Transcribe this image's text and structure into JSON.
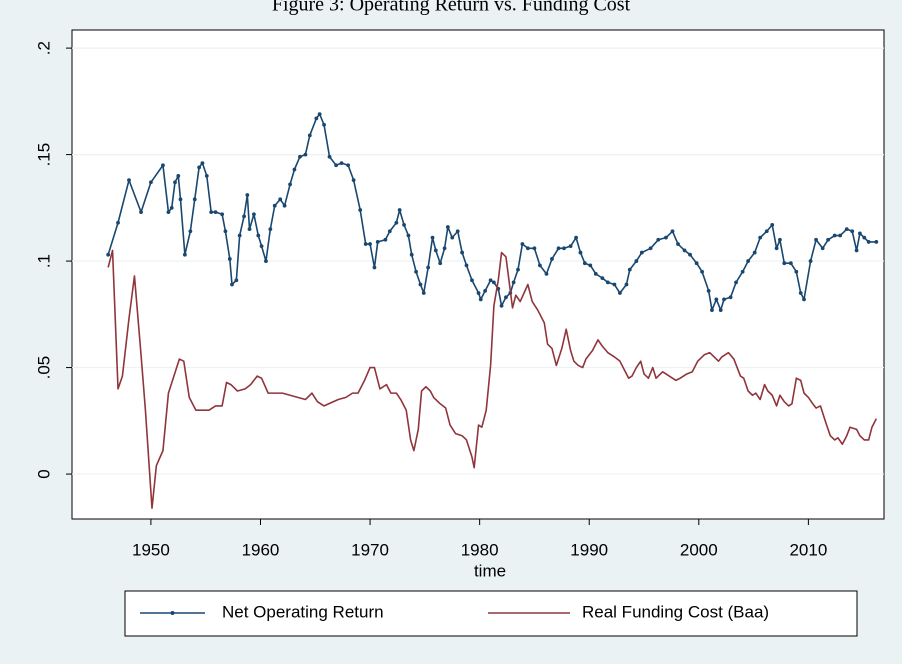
{
  "chart_data": {
    "type": "line",
    "title": "Figure 3: Operating Return vs. Funding Cost",
    "x_label": "time",
    "xlim": [
      1942.8,
      2016.9
    ],
    "xticks": [
      1950,
      1960,
      1970,
      1980,
      1990,
      2000,
      2010
    ],
    "ylim": [
      -0.0211,
      0.2085
    ],
    "yticks": [
      0,
      {
        "value": 0.05,
        "label": ".05"
      },
      {
        "value": 0.1,
        "label": ".1"
      },
      {
        "value": 0.15,
        "label": ".15"
      },
      {
        "value": 0.2,
        "label": ".2"
      }
    ],
    "grid": true,
    "series": [
      {
        "name": "Net Operating Return",
        "color": "#1a476f",
        "marker": true,
        "x": [
          1946.1,
          1947.0,
          1948.0,
          1949.1,
          1950.0,
          1951.1,
          1951.6,
          1951.9,
          1952.2,
          1952.5,
          1952.7,
          1953.1,
          1953.6,
          1954.0,
          1954.4,
          1954.7,
          1955.1,
          1955.5,
          1955.9,
          1956.5,
          1956.8,
          1957.2,
          1957.4,
          1957.8,
          1958.1,
          1958.5,
          1958.8,
          1959.0,
          1959.4,
          1959.8,
          1960.1,
          1960.5,
          1960.9,
          1961.3,
          1961.8,
          1962.2,
          1962.7,
          1963.1,
          1963.6,
          1964.1,
          1964.5,
          1965.1,
          1965.4,
          1965.8,
          1966.3,
          1966.9,
          1967.4,
          1968.0,
          1968.5,
          1969.1,
          1969.6,
          1970.0,
          1970.4,
          1970.7,
          1971.4,
          1971.8,
          1972.4,
          1972.7,
          1973.1,
          1973.5,
          1973.8,
          1974.2,
          1974.6,
          1974.9,
          1975.3,
          1975.7,
          1976.0,
          1976.4,
          1976.8,
          1977.1,
          1977.5,
          1978.0,
          1978.4,
          1978.8,
          1979.3,
          1979.9,
          1980.1,
          1980.5,
          1981.0,
          1981.3,
          1981.7,
          1982.0,
          1982.4,
          1982.8,
          1983.1,
          1983.5,
          1983.9,
          1984.4,
          1985.0,
          1985.5,
          1986.1,
          1986.6,
          1987.2,
          1987.7,
          1988.3,
          1988.8,
          1989.2,
          1989.6,
          1990.1,
          1990.6,
          1991.2,
          1991.7,
          1992.3,
          1992.8,
          1993.4,
          1993.7,
          1994.3,
          1994.8,
          1995.6,
          1996.3,
          1997.0,
          1997.6,
          1998.1,
          1998.7,
          1999.2,
          1999.8,
          2000.3,
          2000.9,
          2001.2,
          2001.6,
          2002.0,
          2002.3,
          2002.9,
          2003.4,
          2004.0,
          2004.5,
          2005.1,
          2005.6,
          2006.2,
          2006.7,
          2007.1,
          2007.4,
          2007.8,
          2008.4,
          2008.9,
          2009.3,
          2009.6,
          2010.2,
          2010.7,
          2011.3,
          2011.8,
          2012.4,
          2012.9,
          2013.5,
          2014.0,
          2014.4,
          2014.7,
          2015.1,
          2015.5,
          2016.2
        ],
        "values": [
          0.103,
          0.118,
          0.138,
          0.123,
          0.137,
          0.145,
          0.123,
          0.125,
          0.137,
          0.14,
          0.129,
          0.103,
          0.114,
          0.129,
          0.144,
          0.146,
          0.14,
          0.123,
          0.123,
          0.122,
          0.114,
          0.101,
          0.089,
          0.091,
          0.112,
          0.121,
          0.131,
          0.115,
          0.122,
          0.112,
          0.107,
          0.1,
          0.115,
          0.126,
          0.129,
          0.126,
          0.136,
          0.143,
          0.149,
          0.15,
          0.159,
          0.167,
          0.169,
          0.164,
          0.149,
          0.145,
          0.146,
          0.145,
          0.138,
          0.124,
          0.108,
          0.108,
          0.097,
          0.109,
          0.11,
          0.114,
          0.118,
          0.124,
          0.117,
          0.112,
          0.103,
          0.095,
          0.089,
          0.085,
          0.097,
          0.111,
          0.105,
          0.099,
          0.106,
          0.116,
          0.111,
          0.114,
          0.104,
          0.098,
          0.091,
          0.085,
          0.082,
          0.086,
          0.091,
          0.09,
          0.087,
          0.079,
          0.083,
          0.085,
          0.09,
          0.096,
          0.108,
          0.106,
          0.106,
          0.098,
          0.094,
          0.101,
          0.106,
          0.106,
          0.107,
          0.111,
          0.104,
          0.099,
          0.098,
          0.094,
          0.092,
          0.09,
          0.089,
          0.085,
          0.089,
          0.096,
          0.1,
          0.104,
          0.106,
          0.11,
          0.111,
          0.114,
          0.108,
          0.105,
          0.103,
          0.099,
          0.095,
          0.086,
          0.077,
          0.082,
          0.077,
          0.082,
          0.083,
          0.09,
          0.095,
          0.1,
          0.104,
          0.111,
          0.114,
          0.117,
          0.106,
          0.11,
          0.099,
          0.099,
          0.095,
          0.085,
          0.082,
          0.1,
          0.11,
          0.106,
          0.11,
          0.112,
          0.112,
          0.115,
          0.114,
          0.105,
          0.113,
          0.111,
          0.109,
          0.109
        ]
      },
      {
        "name": "Real Funding Cost (Baa)",
        "color": "#90353b",
        "marker": false,
        "x": [
          1946.1,
          1946.5,
          1947.0,
          1947.4,
          1948.0,
          1948.5,
          1949.1,
          1949.5,
          1950.1,
          1950.5,
          1951.1,
          1951.6,
          1952.1,
          1952.6,
          1953.0,
          1953.5,
          1954.1,
          1955.3,
          1955.9,
          1956.5,
          1956.9,
          1957.3,
          1957.9,
          1958.6,
          1959.1,
          1959.7,
          1960.1,
          1960.7,
          1962.0,
          1963.4,
          1964.1,
          1964.7,
          1965.2,
          1965.8,
          1967.1,
          1967.8,
          1968.4,
          1968.9,
          1969.5,
          1970.0,
          1970.4,
          1970.9,
          1971.5,
          1971.9,
          1972.4,
          1972.8,
          1973.3,
          1973.7,
          1974.0,
          1974.4,
          1974.7,
          1975.1,
          1975.5,
          1975.8,
          1976.4,
          1976.9,
          1977.3,
          1977.8,
          1978.4,
          1978.8,
          1979.3,
          1979.5,
          1979.9,
          1980.2,
          1980.6,
          1981.0,
          1981.3,
          1981.7,
          1982.0,
          1982.4,
          1983.0,
          1983.3,
          1983.7,
          1984.4,
          1984.8,
          1985.3,
          1985.9,
          1986.2,
          1986.6,
          1987.0,
          1987.5,
          1987.9,
          1988.3,
          1988.6,
          1989.0,
          1989.4,
          1989.7,
          1990.3,
          1990.8,
          1991.2,
          1991.7,
          1992.3,
          1992.8,
          1993.2,
          1993.6,
          1993.9,
          1994.3,
          1994.7,
          1995.0,
          1995.4,
          1995.8,
          1996.1,
          1996.7,
          1997.0,
          1997.6,
          1997.9,
          1998.3,
          1998.9,
          1999.4,
          1999.9,
          2000.5,
          2001.0,
          2001.4,
          2001.8,
          2002.1,
          2002.7,
          2003.2,
          2003.8,
          2004.1,
          2004.5,
          2004.9,
          2005.2,
          2005.6,
          2006.0,
          2006.3,
          2006.7,
          2007.1,
          2007.4,
          2007.8,
          2008.2,
          2008.5,
          2008.9,
          2009.3,
          2009.6,
          2010.0,
          2010.4,
          2010.7,
          2011.1,
          2011.6,
          2012.0,
          2012.4,
          2012.7,
          2013.1,
          2013.5,
          2013.8,
          2014.4,
          2014.7,
          2015.1,
          2015.5,
          2015.8,
          2016.2
        ],
        "values": [
          0.097,
          0.105,
          0.04,
          0.046,
          0.073,
          0.093,
          0.056,
          0.03,
          -0.016,
          0.004,
          0.011,
          0.038,
          0.046,
          0.054,
          0.053,
          0.036,
          0.03,
          0.03,
          0.032,
          0.032,
          0.043,
          0.042,
          0.039,
          0.04,
          0.042,
          0.046,
          0.045,
          0.038,
          0.038,
          0.036,
          0.035,
          0.038,
          0.034,
          0.032,
          0.035,
          0.036,
          0.038,
          0.038,
          0.044,
          0.05,
          0.05,
          0.04,
          0.042,
          0.038,
          0.038,
          0.035,
          0.03,
          0.016,
          0.011,
          0.021,
          0.039,
          0.041,
          0.039,
          0.036,
          0.033,
          0.031,
          0.023,
          0.019,
          0.018,
          0.016,
          0.008,
          0.003,
          0.023,
          0.022,
          0.03,
          0.051,
          0.079,
          0.091,
          0.104,
          0.102,
          0.078,
          0.084,
          0.081,
          0.089,
          0.081,
          0.077,
          0.071,
          0.061,
          0.059,
          0.051,
          0.059,
          0.068,
          0.058,
          0.053,
          0.051,
          0.05,
          0.054,
          0.058,
          0.063,
          0.06,
          0.057,
          0.055,
          0.053,
          0.049,
          0.045,
          0.046,
          0.05,
          0.053,
          0.047,
          0.045,
          0.05,
          0.045,
          0.048,
          0.047,
          0.045,
          0.044,
          0.045,
          0.047,
          0.048,
          0.053,
          0.056,
          0.057,
          0.055,
          0.053,
          0.055,
          0.057,
          0.054,
          0.046,
          0.045,
          0.039,
          0.037,
          0.038,
          0.035,
          0.042,
          0.039,
          0.037,
          0.032,
          0.037,
          0.034,
          0.032,
          0.033,
          0.045,
          0.044,
          0.038,
          0.036,
          0.033,
          0.031,
          0.032,
          0.024,
          0.018,
          0.016,
          0.017,
          0.014,
          0.018,
          0.022,
          0.021,
          0.018,
          0.016,
          0.016,
          0.022,
          0.026
        ]
      }
    ]
  }
}
